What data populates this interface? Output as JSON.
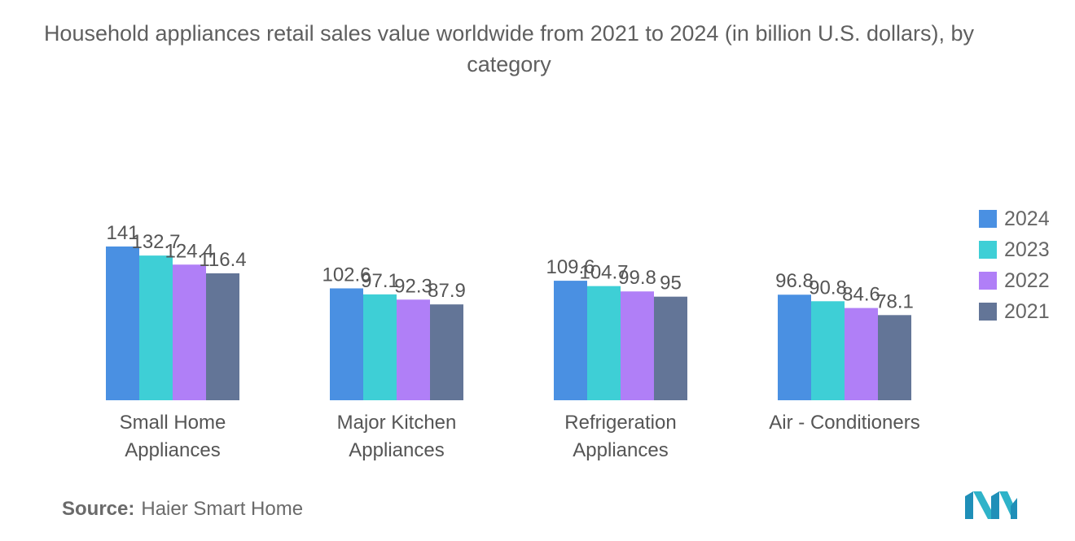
{
  "chart_data": {
    "type": "bar",
    "title": "Household appliances retail sales value worldwide from 2021 to 2024 (in billion U.S. dollars), by category",
    "categories": [
      [
        "Small Home",
        "Appliances"
      ],
      [
        "Major Kitchen",
        "Appliances"
      ],
      [
        "Refrigeration",
        "Appliances"
      ],
      [
        "Air - Conditioners"
      ]
    ],
    "series": [
      {
        "name": "2024",
        "color": "#4a90e2",
        "values": [
          141,
          102.6,
          109.6,
          96.8
        ]
      },
      {
        "name": "2023",
        "color": "#3ecfd6",
        "values": [
          132.7,
          97.1,
          104.7,
          90.8
        ]
      },
      {
        "name": "2022",
        "color": "#b07ff7",
        "values": [
          124.4,
          92.3,
          99.8,
          84.6
        ]
      },
      {
        "name": "2021",
        "color": "#637597",
        "values": [
          116.4,
          87.9,
          95,
          78.1
        ]
      }
    ],
    "ylim": [
      0,
      141
    ],
    "legend_position": "right",
    "grid": false
  },
  "source": {
    "label": "Source:",
    "text": "Haier Smart Home"
  }
}
